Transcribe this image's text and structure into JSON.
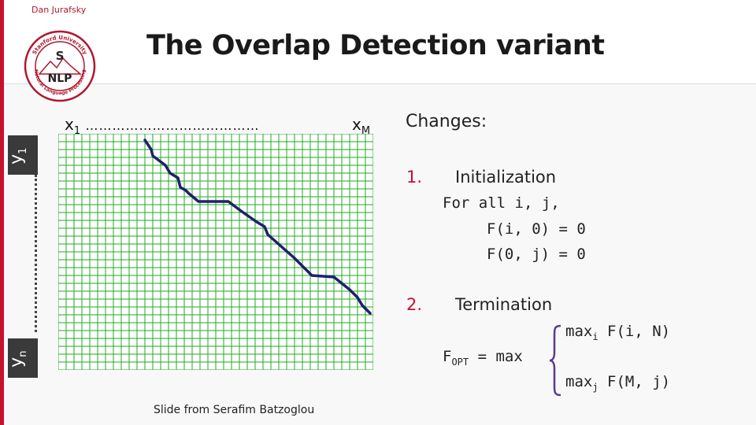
{
  "slide": {
    "author": "Dan Jurafsky",
    "title": "The Overlap Detection variant",
    "logo": {
      "top_text": "Stanford University",
      "letters_top": "S",
      "letters_bottom": "NLP",
      "bottom_text": "Natural Language Processing"
    },
    "axis_x": {
      "start": "x",
      "start_sub": "1",
      "dots": "…………………………………",
      "end": "x",
      "end_sub": "M"
    },
    "axis_y": {
      "start": "y",
      "start_sub": "1",
      "end": "y",
      "end_sub": "n"
    },
    "changes_label": "Changes:",
    "item1": {
      "number": "1.",
      "label": "Initialization",
      "line1": "For all i, j,",
      "line2": "F(i, 0) = 0",
      "line3": "F(0, j) = 0"
    },
    "item2": {
      "number": "2.",
      "label": "Termination",
      "lhs_main": "F",
      "lhs_sub": "OPT",
      "eq": "= max",
      "case1_pre": "max",
      "case1_sub": "i",
      "case1_post": " F(i, N)",
      "case2_pre": "max",
      "case2_sub": "j",
      "case2_post": " F(M, j)"
    },
    "footer": "Slide from Serafim Batzoglou",
    "colors": {
      "accent_red": "#c8102e",
      "grid_green": "#22aa22",
      "path_navy": "#1f1f6e"
    }
  }
}
